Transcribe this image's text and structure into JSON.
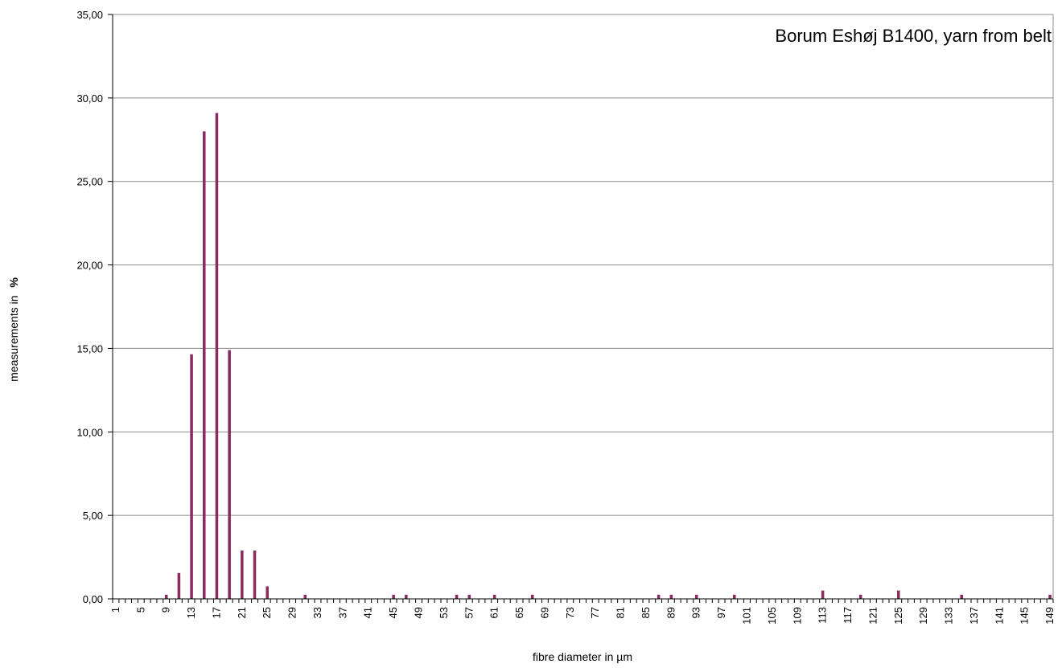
{
  "chart_data": {
    "type": "bar",
    "title": "Borum Eshøj B1400, yarn from belt",
    "xlabel": "fibre diameter in µm",
    "ylabel_text": "measurements in",
    "ylabel_unit": "%",
    "ylim": [
      0,
      35
    ],
    "ytick_labels": [
      "0,00",
      "5,00",
      "10,00",
      "15,00",
      "20,00",
      "25,00",
      "30,00",
      "35,00"
    ],
    "grid": true,
    "bar_color": "#8B2C5F",
    "categories_min": 1,
    "categories_max": 149,
    "xtick_labels": [
      "1",
      "5",
      "9",
      "13",
      "17",
      "21",
      "25",
      "29",
      "33",
      "37",
      "41",
      "45",
      "49",
      "53",
      "57",
      "61",
      "65",
      "69",
      "73",
      "77",
      "81",
      "85",
      "89",
      "93",
      "97",
      "101",
      "105",
      "109",
      "113",
      "117",
      "121",
      "125",
      "129",
      "133",
      "137",
      "141",
      "145",
      "149"
    ],
    "bars": [
      {
        "x": 9,
        "value": 0.25
      },
      {
        "x": 11,
        "value": 1.55
      },
      {
        "x": 13,
        "value": 14.65
      },
      {
        "x": 15,
        "value": 28.0
      },
      {
        "x": 17,
        "value": 29.1
      },
      {
        "x": 19,
        "value": 14.9
      },
      {
        "x": 21,
        "value": 2.9
      },
      {
        "x": 23,
        "value": 2.9
      },
      {
        "x": 25,
        "value": 0.75
      },
      {
        "x": 31,
        "value": 0.25
      },
      {
        "x": 45,
        "value": 0.25
      },
      {
        "x": 47,
        "value": 0.25
      },
      {
        "x": 55,
        "value": 0.25
      },
      {
        "x": 57,
        "value": 0.25
      },
      {
        "x": 61,
        "value": 0.25
      },
      {
        "x": 67,
        "value": 0.25
      },
      {
        "x": 87,
        "value": 0.25
      },
      {
        "x": 89,
        "value": 0.25
      },
      {
        "x": 93,
        "value": 0.25
      },
      {
        "x": 99,
        "value": 0.25
      },
      {
        "x": 113,
        "value": 0.5
      },
      {
        "x": 119,
        "value": 0.25
      },
      {
        "x": 125,
        "value": 0.5
      },
      {
        "x": 135,
        "value": 0.25
      },
      {
        "x": 149,
        "value": 0.25
      }
    ]
  }
}
